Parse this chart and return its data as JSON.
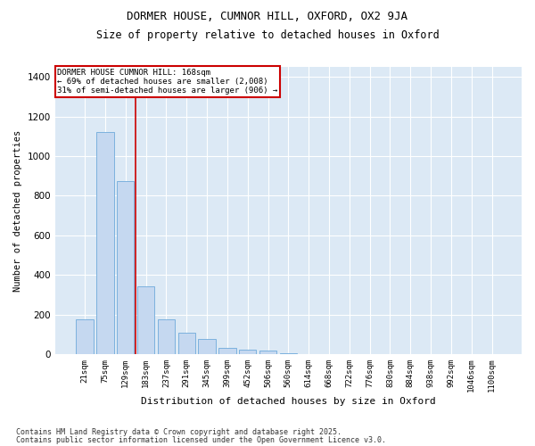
{
  "title1": "DORMER HOUSE, CUMNOR HILL, OXFORD, OX2 9JA",
  "title2": "Size of property relative to detached houses in Oxford",
  "xlabel": "Distribution of detached houses by size in Oxford",
  "ylabel": "Number of detached properties",
  "bar_color": "#c5d8f0",
  "bar_edge_color": "#6eaadb",
  "bg_color": "#dce9f5",
  "grid_color": "#ffffff",
  "annotation_text": "DORMER HOUSE CUMNOR HILL: 168sqm\n← 69% of detached houses are smaller (2,008)\n31% of semi-detached houses are larger (906) →",
  "vline_color": "#cc0000",
  "vline_position": 2.5,
  "categories": [
    "21sqm",
    "75sqm",
    "129sqm",
    "183sqm",
    "237sqm",
    "291sqm",
    "345sqm",
    "399sqm",
    "452sqm",
    "506sqm",
    "560sqm",
    "614sqm",
    "668sqm",
    "722sqm",
    "776sqm",
    "830sqm",
    "884sqm",
    "938sqm",
    "992sqm",
    "1046sqm",
    "1100sqm"
  ],
  "values": [
    175,
    1120,
    875,
    340,
    175,
    110,
    75,
    30,
    22,
    18,
    5,
    0,
    0,
    0,
    0,
    0,
    0,
    0,
    0,
    0,
    0
  ],
  "ylim": [
    0,
    1450
  ],
  "yticks": [
    0,
    200,
    400,
    600,
    800,
    1000,
    1200,
    1400
  ],
  "footer1": "Contains HM Land Registry data © Crown copyright and database right 2025.",
  "footer2": "Contains public sector information licensed under the Open Government Licence v3.0."
}
